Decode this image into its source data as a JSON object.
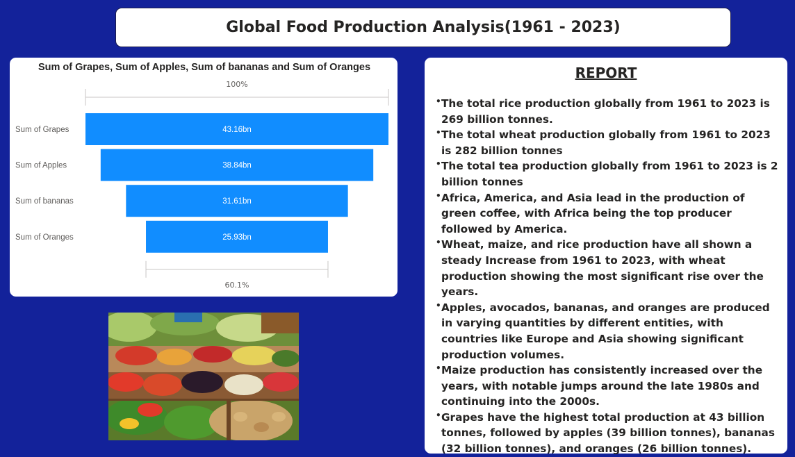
{
  "header": {
    "title": "Global Food Production Analysis(1961 - 2023)"
  },
  "chart_data": {
    "type": "funnel",
    "title": "Sum of Grapes, Sum of Apples, Sum of bananas and Sum of Oranges",
    "categories": [
      "Sum of Grapes",
      "Sum of Apples",
      "Sum of bananas",
      "Sum of Oranges"
    ],
    "values": [
      43.16,
      38.84,
      31.61,
      25.93
    ],
    "value_unit": "bn",
    "value_labels": [
      "43.16bn",
      "38.84bn",
      "31.61bn",
      "25.93bn"
    ],
    "top_percent_label": "100%",
    "bottom_percent_label": "60.1%",
    "bar_color": "#118dff"
  },
  "photo": {
    "description_icon": "vegetable-market-photo"
  },
  "report": {
    "title": "REPORT",
    "items": [
      "The total rice production globally from 1961 to 2023 is 269 billion tonnes.",
      "The total wheat production globally from 1961 to 2023 is 282 billion tonnes",
      "The total tea production globally from 1961 to 2023 is 2 billion tonnes",
      "Africa, America, and Asia lead in the production of green coffee, with Africa being the top producer followed by America.",
      "Wheat, maize, and rice production have all shown a steady Increase from 1961 to 2023, with wheat production showing the most significant rise over the years.",
      "Apples, avocados, bananas, and oranges are produced in varying quantities by different entities, with countries like Europe and Asia showing significant production volumes.",
      "Maize production has consistently increased over the years, with notable jumps around the late 1980s and continuing into the 2000s.",
      "Grapes have the highest total production at 43 billion tonnes, followed by apples (39 billion tonnes), bananas (32 billion tonnes), and oranges (26 billion tonnes)."
    ]
  },
  "colors": {
    "background": "#13229a",
    "card": "#ffffff",
    "bar": "#118dff",
    "text": "#252423"
  }
}
